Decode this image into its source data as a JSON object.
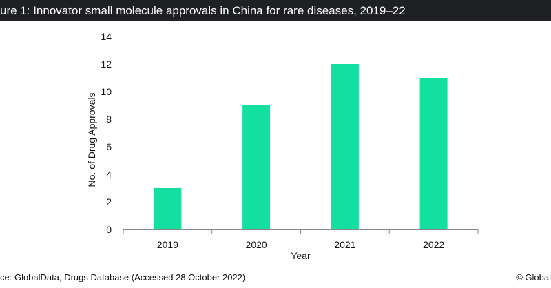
{
  "header": {
    "title": "ure 1: Innovator small molecule approvals in China for rare diseases, 2019–22"
  },
  "footer": {
    "source": "ce: GlobalData, Drugs Database (Accessed 28 October 2022)",
    "copyright": "© Global"
  },
  "colors": {
    "bar": "#13e0a0",
    "title_bg": "#1f2024"
  },
  "chart_data": {
    "type": "bar",
    "categories": [
      "2019",
      "2020",
      "2021",
      "2022"
    ],
    "values": [
      3,
      9,
      12,
      11
    ],
    "title": "ure 1: Innovator small molecule approvals in China for rare diseases, 2019–22",
    "xlabel": "Year",
    "ylabel": "No. of Drug Approvals",
    "ylim": [
      0,
      14
    ],
    "yticks": [
      "0",
      "2",
      "4",
      "6",
      "8",
      "10",
      "12",
      "14"
    ],
    "grid": false,
    "legend": "none"
  }
}
